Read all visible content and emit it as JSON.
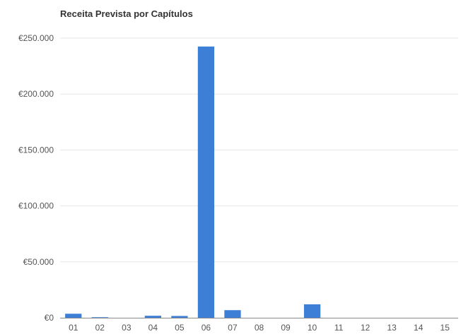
{
  "chart_data": {
    "type": "bar",
    "title": "Receita Prevista por Capítulos",
    "xlabel": "",
    "ylabel": "",
    "categories": [
      "01",
      "02",
      "03",
      "04",
      "05",
      "06",
      "07",
      "08",
      "09",
      "10",
      "11",
      "12",
      "13",
      "14",
      "15"
    ],
    "values": [
      3600,
      500,
      0,
      1800,
      1600,
      242500,
      6800,
      0,
      0,
      12000,
      0,
      0,
      0,
      0,
      0
    ],
    "ylim": [
      0,
      250000
    ],
    "y_ticks": [
      0,
      50000,
      100000,
      150000,
      200000,
      250000
    ],
    "y_tick_labels": [
      "€0",
      "€50.000",
      "€100.000",
      "€150.000",
      "€200.000",
      "€250.000"
    ],
    "bar_color": "#3d7fd6",
    "grid": true,
    "legend": "none"
  }
}
